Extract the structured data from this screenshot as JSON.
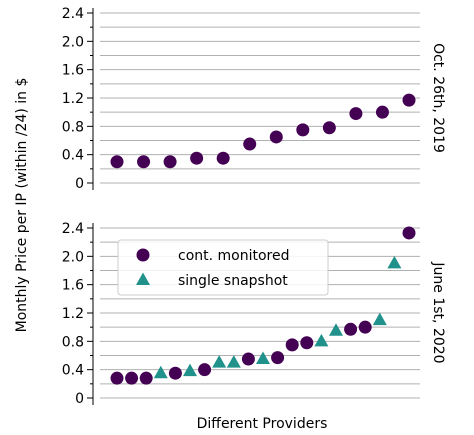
{
  "ylabel": "Monthly Price per IP (within /24) in $",
  "xlabel": "Different Providers",
  "chart_data": [
    {
      "type": "scatter",
      "side_title": "Oct. 26th, 2019",
      "categories": [
        null,
        null,
        null,
        null,
        null,
        null,
        null,
        null,
        null,
        null,
        null,
        null
      ],
      "series": [
        {
          "name": "cont. monitored",
          "color": "#440154",
          "marker": "circle",
          "values": [
            0.3,
            0.3,
            0.3,
            0.35,
            0.35,
            0.55,
            0.65,
            0.75,
            0.78,
            0.98,
            1.0,
            1.17
          ]
        }
      ],
      "ylim": [
        0,
        2.4
      ],
      "yticks": [
        0,
        0.4,
        0.8,
        1.2,
        1.6,
        {
          "value": 2,
          "label": "2.0"
        },
        2.4
      ],
      "minor_yticks": [
        0.2,
        0.6,
        1,
        1.4,
        1.8,
        2.2
      ],
      "grid": true
    },
    {
      "type": "scatter",
      "side_title": "June 1st, 2020",
      "categories": [
        null,
        null,
        null,
        null,
        null,
        null,
        null,
        null,
        null,
        null,
        null,
        null,
        null,
        null,
        null,
        null,
        null,
        null,
        null,
        null,
        null
      ],
      "series": [
        {
          "name": "cont. monitored",
          "color": "#440154",
          "marker": "circle",
          "values": [
            0.28,
            0.28,
            0.28,
            null,
            0.35,
            null,
            0.4,
            null,
            null,
            0.55,
            null,
            0.57,
            0.75,
            0.78,
            null,
            null,
            0.97,
            1.0,
            null,
            null,
            2.33
          ]
        },
        {
          "name": "single snapshot",
          "color": "#21918c",
          "marker": "triangle",
          "values": [
            null,
            null,
            null,
            0.35,
            null,
            0.38,
            null,
            0.5,
            0.5,
            null,
            0.55,
            null,
            null,
            null,
            0.8,
            0.95,
            null,
            null,
            1.1,
            1.9,
            null
          ]
        }
      ],
      "ylim": [
        0,
        2.4
      ],
      "yticks": [
        0,
        0.4,
        0.8,
        1.2,
        1.6,
        {
          "value": 2,
          "label": "2.0"
        },
        2.4
      ],
      "minor_yticks": [
        0.2,
        0.6,
        1,
        1.4,
        1.8,
        2.2
      ],
      "grid": true,
      "legend": "upper left"
    }
  ]
}
